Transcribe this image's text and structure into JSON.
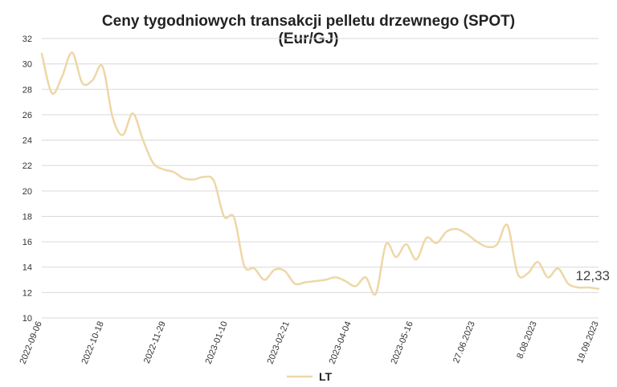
{
  "chart_data": {
    "type": "line",
    "title_line1": "Ceny tygodniowych transakcji pelletu drzewnego (SPOT)",
    "title_line2": "(Eur/GJ)",
    "xlabel": "",
    "ylabel": "",
    "ylim": [
      10,
      32
    ],
    "y_ticks": [
      "10",
      "12",
      "14",
      "16",
      "18",
      "20",
      "22",
      "24",
      "26",
      "28",
      "30",
      "32"
    ],
    "x_tick_labels": [
      "2022-09-06",
      "2022-10-18",
      "2022-11-29",
      "2023-01-10",
      "2023-02-21",
      "2023-04-04",
      "2023-05-16",
      "27.06.2023",
      "8.08.2023",
      "19.09.2023"
    ],
    "grid": true,
    "legend_position": "bottom",
    "series": [
      {
        "name": "LT",
        "color": "#EED7A7",
        "values": [
          30.8,
          27.7,
          29.0,
          30.9,
          28.5,
          28.7,
          29.8,
          25.8,
          24.4,
          26.1,
          24.0,
          22.2,
          21.7,
          21.5,
          21.0,
          20.9,
          21.1,
          20.8,
          18.0,
          17.9,
          14.1,
          13.9,
          13.0,
          13.8,
          13.7,
          12.7,
          12.8,
          12.9,
          13.0,
          13.2,
          12.9,
          12.5,
          13.2,
          11.9,
          15.8,
          14.8,
          15.8,
          14.6,
          16.3,
          15.9,
          16.8,
          17.0,
          16.6,
          16.0,
          15.6,
          15.8,
          17.3,
          13.5,
          13.5,
          14.4,
          13.2,
          13.9,
          12.7,
          12.4,
          12.4,
          12.3
        ]
      }
    ],
    "annotations": [
      {
        "text": "12,33",
        "at_index": 55,
        "value": 12.33
      }
    ]
  }
}
